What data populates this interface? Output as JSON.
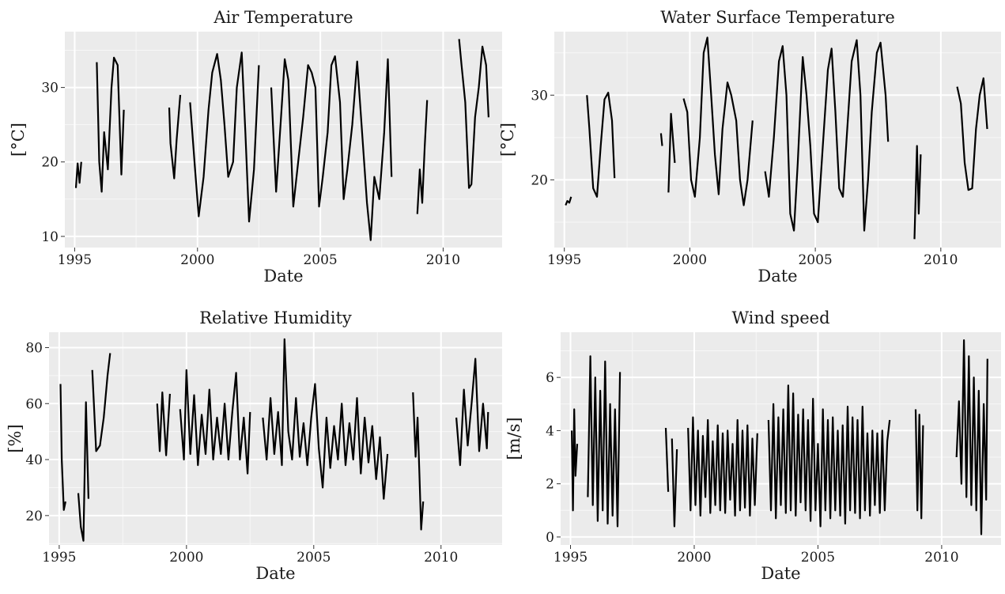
{
  "chart_data": [
    {
      "type": "line",
      "title": "Air Temperature",
      "xlabel": "Date",
      "ylabel": "[°C]",
      "xticks": [
        1995,
        2000,
        2005,
        2010
      ],
      "yticks": [
        10,
        20,
        30
      ],
      "xlim": [
        1994.6,
        2012.4
      ],
      "ylim": [
        8.5,
        37.5
      ],
      "grid": true,
      "segments": [
        {
          "x": [
            1995.05,
            1995.12,
            1995.2,
            1995.27
          ],
          "y": [
            16.5,
            19.8,
            17.2,
            20.0
          ]
        },
        {
          "x": [
            1995.9,
            1996.0,
            1996.1,
            1996.2,
            1996.35,
            1996.5,
            1996.6,
            1996.75,
            1996.9,
            1997.0
          ],
          "y": [
            33.4,
            20.0,
            16.0,
            24.0,
            19.0,
            30.0,
            34.0,
            33.0,
            18.3,
            27.0
          ]
        },
        {
          "x": [
            1998.85,
            1998.9,
            1999.05,
            1999.15,
            1999.3
          ],
          "y": [
            27.3,
            22.5,
            17.8,
            23.0,
            29.0
          ]
        },
        {
          "x": [
            1999.7,
            1999.9,
            2000.05,
            2000.25,
            2000.45,
            2000.6,
            2000.8,
            2000.95,
            2001.1,
            2001.25,
            2001.45,
            2001.6,
            2001.8,
            2001.95,
            2002.1,
            2002.3,
            2002.5
          ],
          "y": [
            28.0,
            19.0,
            12.7,
            18.0,
            27.0,
            32.0,
            34.5,
            31.0,
            25.0,
            18.0,
            20.0,
            30.0,
            34.7,
            24.0,
            12.0,
            19.0,
            33.0
          ]
        },
        {
          "x": [
            2003.0,
            2003.2,
            2003.4,
            2003.55,
            2003.7,
            2003.9,
            2004.1,
            2004.3,
            2004.5,
            2004.65,
            2004.8,
            2004.95,
            2005.1,
            2005.3,
            2005.45,
            2005.6,
            2005.8,
            2005.95,
            2006.1,
            2006.3,
            2006.5,
            2006.7,
            2006.9,
            2007.05,
            2007.2,
            2007.4,
            2007.6,
            2007.75,
            2007.9
          ],
          "y": [
            30.0,
            16.0,
            26.0,
            33.8,
            31.0,
            14.0,
            20.0,
            26.0,
            33.0,
            32.0,
            30.0,
            14.0,
            18.0,
            24.0,
            33.0,
            34.2,
            28.0,
            15.0,
            19.0,
            25.0,
            33.5,
            24.0,
            14.5,
            9.5,
            18.0,
            15.0,
            24.0,
            33.8,
            18.0
          ]
        },
        {
          "x": [
            2008.95,
            2009.05,
            2009.15,
            2009.25,
            2009.35
          ],
          "y": [
            13.0,
            19.0,
            14.5,
            22.0,
            28.3
          ]
        },
        {
          "x": [
            2010.65,
            2010.75,
            2010.9,
            2011.05,
            2011.15,
            2011.3,
            2011.45,
            2011.6,
            2011.75,
            2011.85
          ],
          "y": [
            36.5,
            33.0,
            28.0,
            16.5,
            17.0,
            26.0,
            30.0,
            35.5,
            33.0,
            26.0
          ]
        }
      ]
    },
    {
      "type": "line",
      "title": "Water Surface Temperature",
      "xlabel": "Date",
      "ylabel": "[°C]",
      "xticks": [
        1995,
        2000,
        2005,
        2010
      ],
      "yticks": [
        20,
        30
      ],
      "xlim": [
        1994.6,
        2012.4
      ],
      "ylim": [
        12.0,
        37.5
      ],
      "grid": true,
      "segments": [
        {
          "x": [
            1995.05,
            1995.12,
            1995.2,
            1995.27
          ],
          "y": [
            17.0,
            17.5,
            17.3,
            18.0
          ]
        },
        {
          "x": [
            1995.9,
            1996.0,
            1996.15,
            1996.3,
            1996.45,
            1996.6,
            1996.75,
            1996.9,
            1997.0
          ],
          "y": [
            30.0,
            26.0,
            19.0,
            18.0,
            24.0,
            29.5,
            30.3,
            27.0,
            20.2
          ]
        },
        {
          "x": [
            1998.85,
            1998.9
          ],
          "y": [
            25.5,
            24.0
          ]
        },
        {
          "x": [
            1999.15,
            1999.25,
            1999.4
          ],
          "y": [
            18.5,
            27.8,
            22.0
          ]
        },
        {
          "x": [
            1999.75,
            1999.9,
            2000.05,
            2000.2,
            2000.4,
            2000.55,
            2000.7,
            2000.85,
            2001.0,
            2001.15,
            2001.3,
            2001.5,
            2001.65,
            2001.85,
            2002.0,
            2002.15,
            2002.3,
            2002.5
          ],
          "y": [
            29.6,
            28.0,
            20.0,
            18.0,
            25.0,
            35.0,
            36.8,
            30.0,
            23.0,
            18.3,
            26.0,
            31.5,
            30.0,
            27.0,
            20.0,
            17.0,
            20.0,
            27.0
          ]
        },
        {
          "x": [
            2003.0,
            2003.15,
            2003.35,
            2003.55,
            2003.7,
            2003.85,
            2004.0,
            2004.15,
            2004.3,
            2004.5,
            2004.65,
            2004.8,
            2004.95,
            2005.1,
            2005.3,
            2005.5,
            2005.65,
            2005.8,
            2005.95,
            2006.1,
            2006.25,
            2006.45,
            2006.65,
            2006.8,
            2006.95,
            2007.1,
            2007.25,
            2007.45,
            2007.6,
            2007.8,
            2007.9
          ],
          "y": [
            21.0,
            18.0,
            25.0,
            34.0,
            35.8,
            30.0,
            16.0,
            14.0,
            22.0,
            34.5,
            30.0,
            24.0,
            16.0,
            15.0,
            24.0,
            33.0,
            35.5,
            28.0,
            19.0,
            18.0,
            25.0,
            34.0,
            36.5,
            30.0,
            14.0,
            20.0,
            28.0,
            35.0,
            36.2,
            30.0,
            24.5
          ]
        },
        {
          "x": [
            2008.95,
            2009.05,
            2009.12,
            2009.2
          ],
          "y": [
            13.0,
            24.0,
            16.0,
            23.0
          ]
        },
        {
          "x": [
            2010.65,
            2010.8,
            2010.95,
            2011.1,
            2011.25,
            2011.4,
            2011.55,
            2011.7,
            2011.85
          ],
          "y": [
            31.0,
            29.0,
            22.0,
            18.8,
            19.0,
            26.0,
            30.0,
            32.0,
            26.0
          ]
        }
      ]
    },
    {
      "type": "line",
      "title": "Relative Humidity",
      "xlabel": "Date",
      "ylabel": "[%]",
      "xticks": [
        1995,
        2000,
        2005,
        2010
      ],
      "yticks": [
        20,
        40,
        60,
        80
      ],
      "xlim": [
        1994.6,
        2012.4
      ],
      "ylim": [
        9.5,
        85.5
      ],
      "grid": true,
      "segments": [
        {
          "x": [
            1995.05,
            1995.1,
            1995.18,
            1995.25
          ],
          "y": [
            67.0,
            40.0,
            22.0,
            25.0
          ]
        },
        {
          "x": [
            1995.75,
            1995.85,
            1995.95,
            1996.05,
            1996.15
          ],
          "y": [
            28.0,
            16.0,
            11.0,
            60.5,
            26.0
          ]
        },
        {
          "x": [
            1996.3,
            1996.45,
            1996.6,
            1996.75,
            1996.9,
            1997.0
          ],
          "y": [
            72.0,
            43.0,
            45.0,
            55.0,
            70.0,
            78.0
          ]
        },
        {
          "x": [
            1998.85,
            1998.95,
            1999.05,
            1999.2,
            1999.35
          ],
          "y": [
            60.0,
            43.0,
            64.0,
            41.5,
            63.5
          ]
        },
        {
          "x": [
            1999.75,
            1999.9,
            2000.0,
            2000.15,
            2000.3,
            2000.45,
            2000.6,
            2000.75,
            2000.9,
            2001.05,
            2001.2,
            2001.35,
            2001.5,
            2001.65,
            2001.8,
            2001.95,
            2002.1,
            2002.25,
            2002.4,
            2002.5
          ],
          "y": [
            58.0,
            40.0,
            72.0,
            42.0,
            63.0,
            38.0,
            56.0,
            42.0,
            65.0,
            40.0,
            55.0,
            42.0,
            60.0,
            40.0,
            57.0,
            71.0,
            40.0,
            55.0,
            35.0,
            57.0
          ]
        },
        {
          "x": [
            2003.0,
            2003.15,
            2003.3,
            2003.45,
            2003.6,
            2003.75,
            2003.85,
            2004.0,
            2004.15,
            2004.3,
            2004.45,
            2004.6,
            2004.75,
            2004.9,
            2005.05,
            2005.2,
            2005.35,
            2005.5,
            2005.65,
            2005.8,
            2005.95,
            2006.1,
            2006.25,
            2006.4,
            2006.55,
            2006.7,
            2006.85,
            2007.0,
            2007.15,
            2007.3,
            2007.45,
            2007.6,
            2007.75,
            2007.9
          ],
          "y": [
            55.0,
            40.0,
            62.0,
            42.0,
            57.0,
            38.0,
            83.0,
            50.0,
            40.0,
            62.0,
            41.0,
            53.0,
            38.0,
            55.0,
            67.0,
            44.0,
            30.0,
            55.0,
            37.0,
            52.0,
            40.0,
            60.0,
            38.0,
            53.0,
            40.0,
            62.0,
            35.0,
            55.0,
            39.0,
            52.0,
            33.0,
            48.0,
            26.0,
            42.0
          ]
        },
        {
          "x": [
            2008.9,
            2009.0,
            2009.08,
            2009.15,
            2009.22,
            2009.3
          ],
          "y": [
            64.0,
            41.0,
            55.0,
            35.0,
            15.0,
            25.0
          ]
        },
        {
          "x": [
            2010.6,
            2010.75,
            2010.9,
            2011.05,
            2011.2,
            2011.35,
            2011.5,
            2011.65,
            2011.8,
            2011.85
          ],
          "y": [
            55.0,
            38.0,
            65.0,
            45.0,
            60.0,
            76.0,
            43.0,
            60.0,
            44.0,
            57.0
          ]
        }
      ]
    },
    {
      "type": "line",
      "title": "Wind speed",
      "xlabel": "Date",
      "ylabel": "[m/s]",
      "xticks": [
        1995,
        2000,
        2005,
        2010
      ],
      "yticks": [
        0,
        2,
        4,
        6
      ],
      "xlim": [
        1994.6,
        2012.4
      ],
      "ylim": [
        -0.3,
        7.7
      ],
      "grid": true,
      "segments": [
        {
          "x": [
            1995.05,
            1995.1,
            1995.15,
            1995.2,
            1995.27
          ],
          "y": [
            4.0,
            1.0,
            4.8,
            2.3,
            3.5
          ]
        },
        {
          "x": [
            1995.7,
            1995.8,
            1995.9,
            1996.0,
            1996.1,
            1996.2,
            1996.3,
            1996.4,
            1996.5,
            1996.6,
            1996.7,
            1996.8,
            1996.9,
            1997.0
          ],
          "y": [
            1.5,
            6.8,
            1.2,
            6.0,
            0.6,
            5.5,
            1.0,
            6.6,
            0.5,
            5.0,
            0.8,
            4.8,
            0.4,
            6.2
          ]
        },
        {
          "x": [
            1998.85,
            1998.95
          ],
          "y": [
            4.1,
            1.7
          ]
        },
        {
          "x": [
            1999.1,
            1999.2,
            1999.3
          ],
          "y": [
            3.7,
            0.4,
            3.3
          ]
        },
        {
          "x": [
            1999.75,
            1999.85,
            1999.95,
            2000.05,
            2000.15,
            2000.25,
            2000.35,
            2000.45,
            2000.55,
            2000.65,
            2000.75,
            2000.85,
            2000.95,
            2001.05,
            2001.15,
            2001.25,
            2001.35,
            2001.45,
            2001.55,
            2001.65,
            2001.75,
            2001.85,
            2001.95,
            2002.05,
            2002.15,
            2002.25,
            2002.35,
            2002.45,
            2002.55
          ],
          "y": [
            4.1,
            1.0,
            4.5,
            1.2,
            4.0,
            0.8,
            3.8,
            1.5,
            4.4,
            0.9,
            3.6,
            1.2,
            4.2,
            1.0,
            3.9,
            0.9,
            4.0,
            1.4,
            3.5,
            0.8,
            4.4,
            1.0,
            4.0,
            1.1,
            4.2,
            0.8,
            3.7,
            1.2,
            3.9
          ]
        },
        {
          "x": [
            2003.0,
            2003.1,
            2003.2,
            2003.3,
            2003.4,
            2003.5,
            2003.6,
            2003.7,
            2003.8,
            2003.9,
            2004.0,
            2004.1,
            2004.2,
            2004.3,
            2004.4,
            2004.5,
            2004.6,
            2004.7,
            2004.8,
            2004.9,
            2005.0,
            2005.1,
            2005.2,
            2005.3,
            2005.4,
            2005.5,
            2005.6,
            2005.7,
            2005.8,
            2005.9,
            2006.0,
            2006.1,
            2006.2,
            2006.3,
            2006.4,
            2006.5,
            2006.6,
            2006.7,
            2006.8,
            2006.9,
            2007.0,
            2007.1,
            2007.2,
            2007.3,
            2007.4,
            2007.5,
            2007.6,
            2007.7,
            2007.8,
            2007.9
          ],
          "y": [
            4.4,
            1.0,
            5.0,
            0.7,
            4.5,
            1.2,
            4.8,
            0.9,
            5.7,
            1.0,
            5.4,
            0.8,
            4.6,
            1.3,
            4.8,
            1.0,
            4.4,
            0.6,
            5.2,
            1.0,
            3.5,
            0.4,
            4.8,
            1.0,
            4.4,
            0.7,
            4.5,
            1.0,
            4.0,
            0.8,
            4.2,
            0.5,
            4.9,
            1.0,
            4.5,
            0.9,
            4.4,
            0.7,
            4.9,
            1.0,
            3.9,
            0.8,
            4.0,
            1.2,
            3.9,
            0.9,
            4.0,
            1.0,
            3.6,
            4.4
          ]
        },
        {
          "x": [
            2008.95,
            2009.02,
            2009.1,
            2009.18,
            2009.25
          ],
          "y": [
            4.8,
            1.0,
            4.6,
            0.7,
            4.2
          ]
        },
        {
          "x": [
            2010.6,
            2010.7,
            2010.8,
            2010.9,
            2011.0,
            2011.1,
            2011.2,
            2011.3,
            2011.4,
            2011.5,
            2011.6,
            2011.7,
            2011.8,
            2011.85
          ],
          "y": [
            3.0,
            5.1,
            2.0,
            7.4,
            1.5,
            6.8,
            1.2,
            6.0,
            1.0,
            5.5,
            0.1,
            5.0,
            1.4,
            6.7
          ]
        }
      ]
    }
  ]
}
